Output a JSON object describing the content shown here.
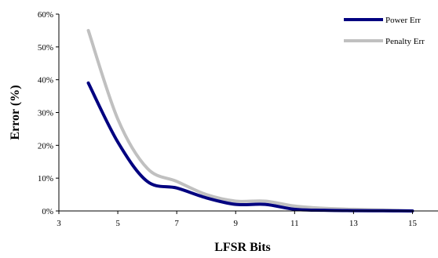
{
  "chart_data": {
    "type": "line",
    "title": "",
    "xlabel": "LFSR Bits",
    "ylabel": "Error (%)",
    "xlim": [
      3,
      16
    ],
    "ylim": [
      0,
      60
    ],
    "xticks": [
      3,
      5,
      7,
      9,
      11,
      13,
      15
    ],
    "yticks": [
      0,
      10,
      20,
      30,
      40,
      50,
      60
    ],
    "xtick_labels": [
      "3",
      "5",
      "7",
      "9",
      "11",
      "13",
      "15"
    ],
    "ytick_labels": [
      "0%",
      "10%",
      "20%",
      "30%",
      "40%",
      "50%",
      "60%"
    ],
    "grid": false,
    "legend_position": "top-right",
    "series": [
      {
        "name": "Power Err",
        "color": "#000080",
        "x": [
          4,
          5,
          6,
          7,
          8,
          9,
          10,
          11,
          12,
          13,
          14,
          15
        ],
        "y": [
          39,
          21,
          9,
          7,
          4,
          2,
          2,
          0.5,
          0.2,
          0.1,
          0.05,
          0
        ]
      },
      {
        "name": "Penalty Err",
        "color": "#c0c0c0",
        "x": [
          4,
          5,
          6,
          7,
          8,
          9,
          10,
          11,
          12,
          13,
          14,
          15
        ],
        "y": [
          55,
          28,
          13,
          9,
          5,
          3,
          3,
          1.5,
          0.8,
          0.5,
          0.3,
          0
        ]
      }
    ]
  }
}
